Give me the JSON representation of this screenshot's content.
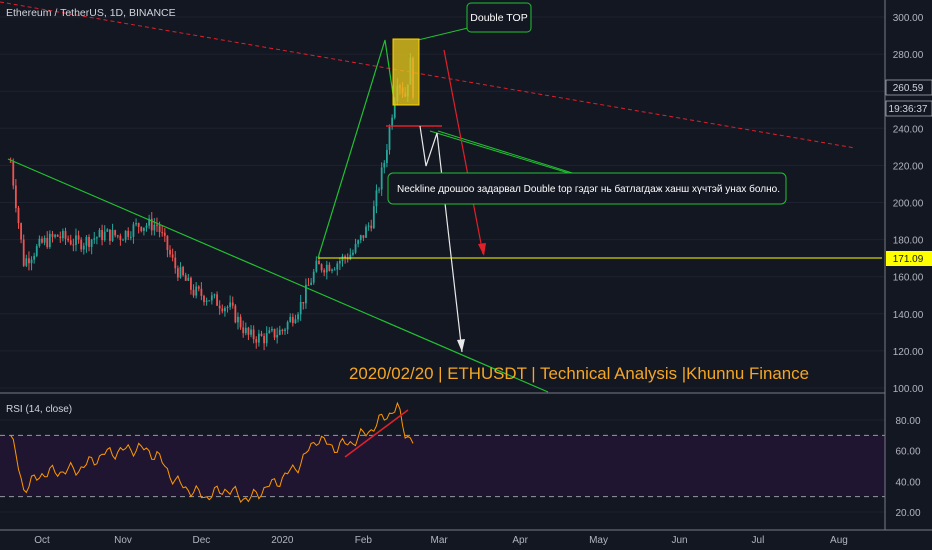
{
  "header": {
    "symbol_title": "Ethereum / TetherUS, 1D, BINANCE"
  },
  "rsi_panel": {
    "label": "RSI (14, close)"
  },
  "annotations": {
    "double_top": "Double TOP",
    "neckline_note": "Neckline дрошоо задарвал Double top гэдэг нь батлагдаж ханш хүчтэй унах болно.",
    "watermark": "2020/02/20 | ETHUSDT | Technical Analysis |Khunnu Finance"
  },
  "price_tags": {
    "last_price": "260.59",
    "countdown": "19:36:37",
    "support_level": "171.09"
  },
  "colors": {
    "background": "#131722",
    "bull": "#26a69a",
    "bear": "#ef5350",
    "support_line": "#ffff00",
    "trend_green": "#21c031",
    "resistance_red": "#e0202a",
    "rsi_line": "#ff9800",
    "rsi_band": "#1f1530",
    "watermark": "#f5a623"
  },
  "chart_data": [
    {
      "type": "candlestick",
      "title": "Ethereum / TetherUS, 1D, BINANCE",
      "x_ticks": [
        "Oct",
        "Nov",
        "Dec",
        "2020",
        "Feb",
        "Mar",
        "Apr",
        "May",
        "Jun",
        "Jul",
        "Aug"
      ],
      "y_ticks": [
        100,
        120,
        140,
        160,
        180,
        200,
        220,
        240,
        260,
        280,
        300
      ],
      "ylim": [
        100,
        305
      ],
      "levels": {
        "support": 171.09,
        "last": 260.59
      },
      "path": [
        [
          "2019-09-19",
          222
        ],
        [
          "2019-09-24",
          168
        ],
        [
          "2019-10-01",
          178
        ],
        [
          "2019-10-07",
          182
        ],
        [
          "2019-10-15",
          178
        ],
        [
          "2019-10-25",
          183
        ],
        [
          "2019-10-31",
          182
        ],
        [
          "2019-11-07",
          188
        ],
        [
          "2019-11-14",
          188
        ],
        [
          "2019-11-21",
          165
        ],
        [
          "2019-11-28",
          152
        ],
        [
          "2019-12-05",
          148
        ],
        [
          "2019-12-12",
          143
        ],
        [
          "2019-12-19",
          128
        ],
        [
          "2019-12-25",
          127
        ],
        [
          "2020-01-01",
          131
        ],
        [
          "2020-01-08",
          145
        ],
        [
          "2020-01-14",
          165
        ],
        [
          "2020-01-21",
          167
        ],
        [
          "2020-01-28",
          173
        ],
        [
          "2020-02-04",
          190
        ],
        [
          "2020-02-09",
          222
        ],
        [
          "2020-02-14",
          267
        ],
        [
          "2020-02-17",
          258
        ],
        [
          "2020-02-19",
          275
        ],
        [
          "2020-02-20",
          260.59
        ]
      ]
    },
    {
      "type": "line",
      "title": "RSI (14, close)",
      "y_ticks": [
        20,
        40,
        60,
        80
      ],
      "ylim": [
        17,
        97
      ],
      "bands": [
        30,
        70
      ],
      "path": [
        [
          "2019-09-19",
          70
        ],
        [
          "2019-09-24",
          35
        ],
        [
          "2019-10-01",
          45
        ],
        [
          "2019-10-15",
          48
        ],
        [
          "2019-10-25",
          58
        ],
        [
          "2019-11-07",
          62
        ],
        [
          "2019-11-14",
          57
        ],
        [
          "2019-11-21",
          40
        ],
        [
          "2019-11-28",
          33
        ],
        [
          "2019-12-03",
          30
        ],
        [
          "2019-12-10",
          35
        ],
        [
          "2019-12-19",
          28
        ],
        [
          "2019-12-25",
          35
        ],
        [
          "2020-01-01",
          42
        ],
        [
          "2020-01-08",
          52
        ],
        [
          "2020-01-14",
          68
        ],
        [
          "2020-01-21",
          62
        ],
        [
          "2020-01-28",
          66
        ],
        [
          "2020-02-04",
          74
        ],
        [
          "2020-02-09",
          82
        ],
        [
          "2020-02-14",
          88
        ],
        [
          "2020-02-17",
          72
        ],
        [
          "2020-02-20",
          66
        ]
      ]
    }
  ]
}
